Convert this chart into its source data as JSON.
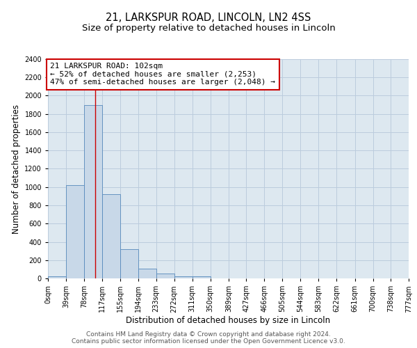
{
  "title_line1": "21, LARKSPUR ROAD, LINCOLN, LN2 4SS",
  "title_line2": "Size of property relative to detached houses in Lincoln",
  "xlabel": "Distribution of detached houses by size in Lincoln",
  "ylabel": "Number of detached properties",
  "bin_edges": [
    0,
    39,
    78,
    117,
    155,
    194,
    233,
    272,
    311,
    350,
    389,
    427,
    466,
    505,
    544,
    583,
    622,
    661,
    700,
    738,
    777
  ],
  "bar_heights": [
    20,
    1020,
    1900,
    920,
    320,
    110,
    50,
    25,
    20,
    0,
    0,
    0,
    0,
    0,
    0,
    0,
    0,
    0,
    0,
    0
  ],
  "bar_color": "#c8d8e8",
  "bar_edge_color": "#5588bb",
  "property_size": 102,
  "vline_color": "#cc0000",
  "annotation_line1": "21 LARKSPUR ROAD: 102sqm",
  "annotation_line2": "← 52% of detached houses are smaller (2,253)",
  "annotation_line3": "47% of semi-detached houses are larger (2,048) →",
  "annotation_box_color": "white",
  "annotation_box_edge_color": "#cc0000",
  "ylim": [
    0,
    2400
  ],
  "yticks": [
    0,
    200,
    400,
    600,
    800,
    1000,
    1200,
    1400,
    1600,
    1800,
    2000,
    2200,
    2400
  ],
  "tick_labels": [
    "0sqm",
    "39sqm",
    "78sqm",
    "117sqm",
    "155sqm",
    "194sqm",
    "233sqm",
    "272sqm",
    "311sqm",
    "350sqm",
    "389sqm",
    "427sqm",
    "466sqm",
    "505sqm",
    "544sqm",
    "583sqm",
    "622sqm",
    "661sqm",
    "700sqm",
    "738sqm",
    "777sqm"
  ],
  "grid_color": "#bbccdd",
  "background_color": "#dde8f0",
  "footer_text": "Contains HM Land Registry data © Crown copyright and database right 2024.\nContains public sector information licensed under the Open Government Licence v3.0.",
  "title_fontsize": 10.5,
  "subtitle_fontsize": 9.5,
  "axis_label_fontsize": 8.5,
  "tick_fontsize": 7,
  "annotation_fontsize": 8,
  "footer_fontsize": 6.5
}
